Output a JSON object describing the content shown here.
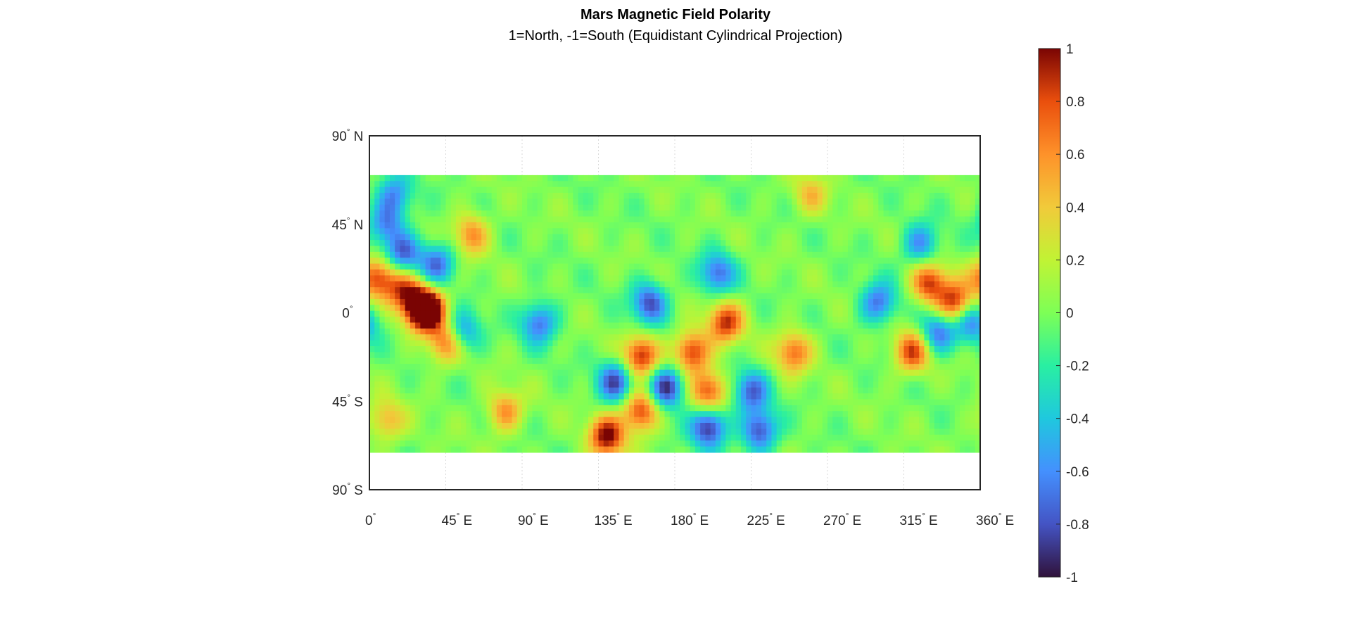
{
  "title": "Mars Magnetic Field Polarity",
  "subtitle": "1=North, -1=South (Equidistant Cylindrical Projection)",
  "chart_data": {
    "type": "heatmap",
    "title": "Mars Magnetic Field Polarity",
    "subtitle": "1=North, -1=South (Equidistant Cylindrical Projection)",
    "projection": "Equidistant Cylindrical",
    "x_range": [
      0,
      360
    ],
    "y_range": [
      -90,
      90
    ],
    "data_lat_extent": [
      -70,
      70
    ],
    "grid": true,
    "colormap": "turbo",
    "x_ticks": [
      {
        "value": 0,
        "num": "0",
        "suffix": ""
      },
      {
        "value": 45,
        "num": "45",
        "suffix": "E"
      },
      {
        "value": 90,
        "num": "90",
        "suffix": "E"
      },
      {
        "value": 135,
        "num": "135",
        "suffix": "E"
      },
      {
        "value": 180,
        "num": "180",
        "suffix": "E"
      },
      {
        "value": 225,
        "num": "225",
        "suffix": "E"
      },
      {
        "value": 270,
        "num": "270",
        "suffix": "E"
      },
      {
        "value": 315,
        "num": "315",
        "suffix": "E"
      },
      {
        "value": 360,
        "num": "360",
        "suffix": "E"
      }
    ],
    "y_ticks": [
      {
        "value": 90,
        "num": "90",
        "suffix": "N"
      },
      {
        "value": 45,
        "num": "45",
        "suffix": "N"
      },
      {
        "value": 0,
        "num": "0",
        "suffix": ""
      },
      {
        "value": -45,
        "num": "45",
        "suffix": "S"
      },
      {
        "value": -90,
        "num": "90",
        "suffix": "S"
      }
    ],
    "colorbar": {
      "range": [
        -1,
        1
      ],
      "ticks": [
        "1",
        "0.8",
        "0.6",
        "0.4",
        "0.2",
        "0",
        "-0.2",
        "-0.4",
        "-0.6",
        "-0.8",
        "-1"
      ],
      "tick_values": [
        1,
        0.8,
        0.6,
        0.4,
        0.2,
        0,
        -0.2,
        -0.4,
        -0.6,
        -0.8,
        -1
      ]
    },
    "features": [
      {
        "lon": 30,
        "lat": 2,
        "value": 0.9
      },
      {
        "lon": 35,
        "lat": 2,
        "value": 0.95
      },
      {
        "lon": 5,
        "lat": 18,
        "value": 0.8
      },
      {
        "lon": 20,
        "lat": 12,
        "value": 0.7
      },
      {
        "lon": 45,
        "lat": -15,
        "value": 0.7
      },
      {
        "lon": 60,
        "lat": 40,
        "value": 0.6
      },
      {
        "lon": 20,
        "lat": 30,
        "value": -0.7
      },
      {
        "lon": 40,
        "lat": 25,
        "value": -0.7
      },
      {
        "lon": 10,
        "lat": 45,
        "value": -0.6
      },
      {
        "lon": 55,
        "lat": -10,
        "value": -0.6
      },
      {
        "lon": 100,
        "lat": -5,
        "value": -0.7
      },
      {
        "lon": 160,
        "lat": -22,
        "value": 0.9
      },
      {
        "lon": 190,
        "lat": -20,
        "value": 0.9
      },
      {
        "lon": 175,
        "lat": -38,
        "value": -0.95
      },
      {
        "lon": 145,
        "lat": -35,
        "value": -0.8
      },
      {
        "lon": 200,
        "lat": -40,
        "value": 0.8
      },
      {
        "lon": 160,
        "lat": -50,
        "value": 0.9
      },
      {
        "lon": 140,
        "lat": -63,
        "value": 1.0
      },
      {
        "lon": 200,
        "lat": -58,
        "value": -0.95
      },
      {
        "lon": 230,
        "lat": -60,
        "value": -0.85
      },
      {
        "lon": 225,
        "lat": -40,
        "value": -0.7
      },
      {
        "lon": 165,
        "lat": 5,
        "value": -0.8
      },
      {
        "lon": 205,
        "lat": 20,
        "value": -0.7
      },
      {
        "lon": 210,
        "lat": -5,
        "value": 0.85
      },
      {
        "lon": 250,
        "lat": -20,
        "value": 0.7
      },
      {
        "lon": 330,
        "lat": 15,
        "value": 0.85
      },
      {
        "lon": 345,
        "lat": 5,
        "value": 0.9
      },
      {
        "lon": 320,
        "lat": -20,
        "value": 0.8
      },
      {
        "lon": 300,
        "lat": 5,
        "value": -0.7
      },
      {
        "lon": 325,
        "lat": 35,
        "value": -0.6
      },
      {
        "lon": 335,
        "lat": -10,
        "value": -0.7
      },
      {
        "lon": 355,
        "lat": -5,
        "value": -0.6
      },
      {
        "lon": 15,
        "lat": 60,
        "value": -0.6
      },
      {
        "lon": 10,
        "lat": -55,
        "value": 0.5
      },
      {
        "lon": 80,
        "lat": -50,
        "value": 0.6
      },
      {
        "lon": 260,
        "lat": 60,
        "value": 0.4
      }
    ]
  }
}
